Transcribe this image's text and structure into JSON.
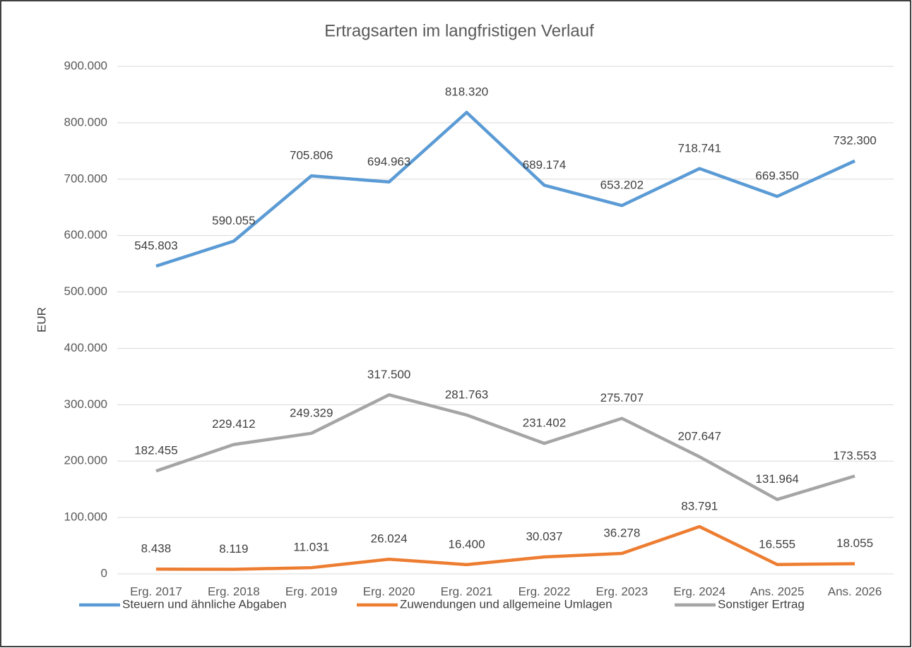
{
  "chart_data": {
    "type": "line",
    "title": "Ertragsarten im langfristigen Verlauf",
    "y_label": "EUR",
    "categories": [
      "Erg. 2017",
      "Erg. 2018",
      "Erg. 2019",
      "Erg. 2020",
      "Erg. 2021",
      "Erg. 2022",
      "Erg. 2023",
      "Erg. 2024",
      "Ans. 2025",
      "Ans. 2026"
    ],
    "series": [
      {
        "name": "Steuern und ähnliche Abgaben",
        "color": "#5b9bd5",
        "values": [
          545803,
          590055,
          705806,
          694963,
          818320,
          689174,
          653202,
          718741,
          669350,
          732300
        ],
        "value_labels": [
          "545.803",
          "590.055",
          "705.806",
          "694.963",
          "818.320",
          "689.174",
          "653.202",
          "718.741",
          "669.350",
          "732.300"
        ]
      },
      {
        "name": "Zuwendungen und allgemeine Umlagen",
        "color": "#ed7d31",
        "values": [
          8438,
          8119,
          11031,
          26024,
          16400,
          30037,
          36278,
          83791,
          16555,
          18055
        ],
        "value_labels": [
          "8.438",
          "8.119",
          "11.031",
          "26.024",
          "16.400",
          "30.037",
          "36.278",
          "83.791",
          "16.555",
          "18.055"
        ]
      },
      {
        "name": "Sonstiger Ertrag",
        "color": "#a5a5a5",
        "values": [
          182455,
          229412,
          249329,
          317500,
          281763,
          231402,
          275707,
          207647,
          131964,
          173553
        ],
        "value_labels": [
          "182.455",
          "229.412",
          "249.329",
          "317.500",
          "281.763",
          "231.402",
          "275.707",
          "207.647",
          "131.964",
          "173.553"
        ]
      }
    ],
    "ylim": [
      0,
      900000
    ],
    "yticks": [
      0,
      {
        "value": 100000,
        "label": "100.000"
      },
      {
        "value": 200000,
        "label": "200.000"
      },
      {
        "value": 300000,
        "label": "300.000"
      },
      {
        "value": 400000,
        "label": "400.000"
      },
      {
        "value": 500000,
        "label": "500.000"
      },
      {
        "value": 600000,
        "label": "600.000"
      },
      {
        "value": 700000,
        "label": "700.000"
      },
      {
        "value": 800000,
        "label": "800.000"
      },
      {
        "value": 900000,
        "label": "900.000"
      }
    ],
    "grid": true,
    "legend": "bottom"
  }
}
